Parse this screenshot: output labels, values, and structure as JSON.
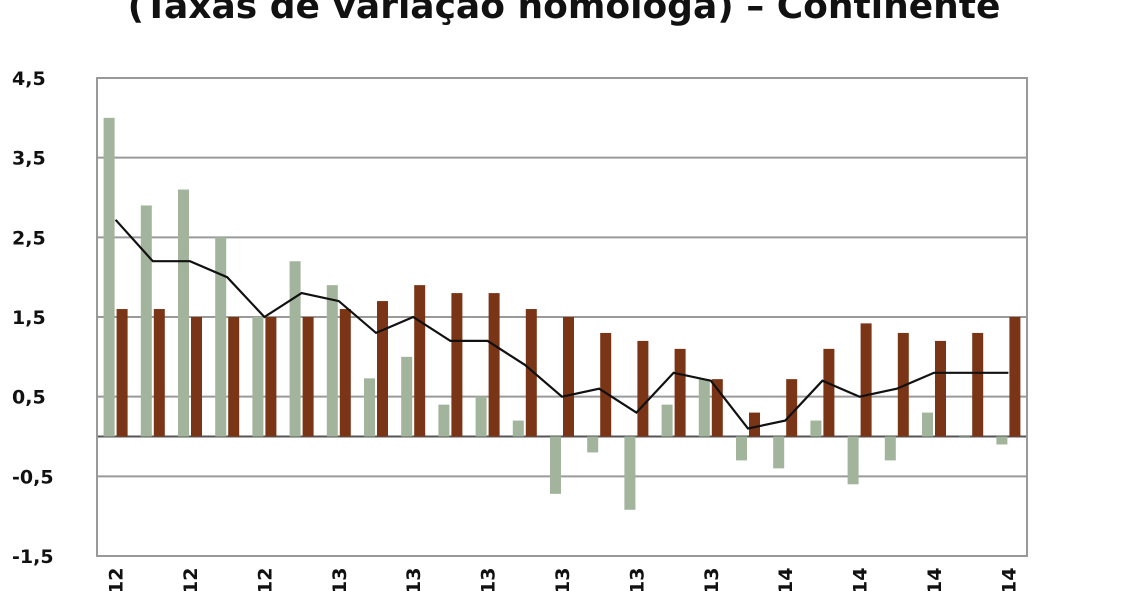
{
  "title": "(Taxas de variação homóloga) – Continente",
  "chart_data": {
    "type": "bar",
    "title": "(Taxas de variação homóloga) – Continente",
    "ylim": [
      -1.5,
      4.5
    ],
    "yticks": [
      "4,5",
      "3,5",
      "2,5",
      "1,5",
      "0,5",
      "-0,5",
      "-1,5"
    ],
    "ytick_values": [
      4.5,
      3.5,
      2.5,
      1.5,
      0.5,
      -0.5,
      -1.5
    ],
    "grid": true,
    "xtick_labels": [
      "12",
      "12",
      "12",
      "13",
      "13",
      "13",
      "13",
      "13",
      "13",
      "14",
      "14",
      "14",
      "14"
    ],
    "xtick_indices": [
      0,
      2,
      4,
      6,
      8,
      10,
      12,
      14,
      16,
      18,
      20,
      22,
      24
    ],
    "series": [
      {
        "kind": "bar",
        "color": "#a3b49c",
        "values": [
          4.0,
          2.9,
          3.1,
          2.5,
          1.5,
          2.2,
          1.9,
          0.73,
          1.0,
          0.4,
          0.5,
          0.2,
          -0.72,
          -0.2,
          -0.92,
          0.4,
          0.72,
          -0.3,
          -0.4,
          0.2,
          -0.6,
          -0.3,
          0.3,
          0.0,
          -0.1
        ]
      },
      {
        "kind": "bar",
        "color": "#7a3517",
        "values": [
          1.6,
          1.6,
          1.5,
          1.5,
          1.5,
          1.5,
          1.6,
          1.7,
          1.9,
          1.8,
          1.8,
          1.6,
          1.5,
          1.3,
          1.2,
          1.1,
          0.72,
          0.3,
          0.72,
          1.1,
          1.42,
          1.3,
          1.2,
          1.3,
          1.5
        ]
      },
      {
        "kind": "line",
        "color": "#111111",
        "values": [
          2.72,
          2.2,
          2.2,
          2.0,
          1.5,
          1.8,
          1.7,
          1.3,
          1.5,
          1.2,
          1.2,
          0.9,
          0.5,
          0.6,
          0.3,
          0.8,
          0.7,
          0.1,
          0.2,
          0.7,
          0.5,
          0.6,
          0.8,
          0.8,
          0.8
        ]
      }
    ]
  }
}
